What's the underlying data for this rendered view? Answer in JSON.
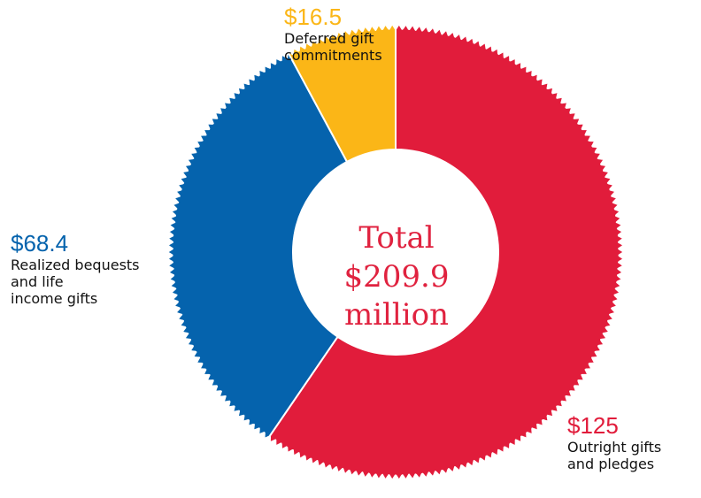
{
  "chart_data": {
    "type": "pie",
    "variant": "donut",
    "start_angle_deg": 0,
    "direction": "clockwise",
    "center_label": [
      "Total",
      "$209.9",
      "million"
    ],
    "slices": [
      {
        "value": 125,
        "value_label": "$125",
        "label_lines": [
          "Outright gifts",
          "and pledges"
        ],
        "color": "#e11c3b"
      },
      {
        "value": 68.4,
        "value_label": "$68.4",
        "label_lines": [
          "Realized bequests",
          "and life",
          "income gifts"
        ],
        "color": "#0563ad"
      },
      {
        "value": 16.5,
        "value_label": "$16.5",
        "label_lines": [
          "Deferred gift",
          "commitments"
        ],
        "color": "#fbb617"
      }
    ]
  }
}
